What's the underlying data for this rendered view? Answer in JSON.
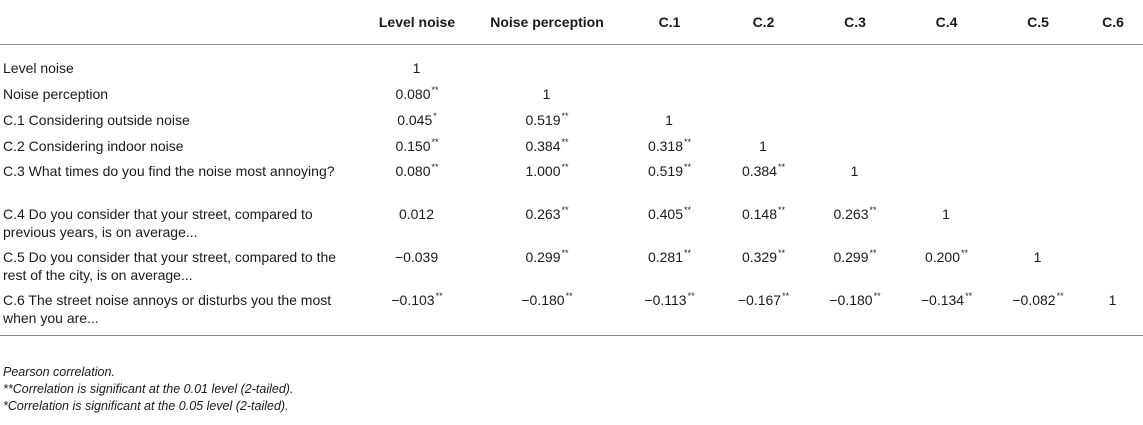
{
  "headers": [
    "",
    "Level noise",
    "Noise perception",
    "C.1",
    "C.2",
    "C.3",
    "C.4",
    "C.5",
    "C.6"
  ],
  "rows": [
    {
      "label": "Level noise",
      "cells": [
        [
          "1",
          ""
        ],
        [
          "",
          ""
        ],
        [
          "",
          ""
        ],
        [
          "",
          ""
        ],
        [
          "",
          ""
        ],
        [
          "",
          ""
        ],
        [
          "",
          ""
        ],
        [
          "",
          ""
        ]
      ]
    },
    {
      "label": "Noise perception",
      "cells": [
        [
          "0.080",
          "**"
        ],
        [
          "1",
          ""
        ],
        [
          "",
          ""
        ],
        [
          "",
          ""
        ],
        [
          "",
          ""
        ],
        [
          "",
          ""
        ],
        [
          "",
          ""
        ],
        [
          "",
          ""
        ]
      ]
    },
    {
      "label": "C.1 Considering outside noise",
      "cells": [
        [
          "0.045",
          "*"
        ],
        [
          "0.519",
          "**"
        ],
        [
          "1",
          ""
        ],
        [
          "",
          ""
        ],
        [
          "",
          ""
        ],
        [
          "",
          ""
        ],
        [
          "",
          ""
        ],
        [
          "",
          ""
        ]
      ]
    },
    {
      "label": "C.2 Considering indoor noise",
      "cells": [
        [
          "0.150",
          "**"
        ],
        [
          "0.384",
          "**"
        ],
        [
          "0.318",
          "**"
        ],
        [
          "1",
          ""
        ],
        [
          "",
          ""
        ],
        [
          "",
          ""
        ],
        [
          "",
          ""
        ],
        [
          "",
          ""
        ]
      ]
    },
    {
      "label": "C.3 What times do you find the noise most annoying?",
      "cells": [
        [
          "0.080",
          "**"
        ],
        [
          "1.000",
          "**"
        ],
        [
          "0.519",
          "**"
        ],
        [
          "0.384",
          "**"
        ],
        [
          "1",
          ""
        ],
        [
          "",
          ""
        ],
        [
          "",
          ""
        ],
        [
          "",
          ""
        ]
      ]
    },
    {
      "label": "C.4 Do you consider that your street, compared to previous years, is on average...",
      "cells": [
        [
          "0.012",
          ""
        ],
        [
          "0.263",
          "**"
        ],
        [
          "0.405",
          "**"
        ],
        [
          "0.148",
          "**"
        ],
        [
          "0.263",
          "**"
        ],
        [
          "1",
          ""
        ],
        [
          "",
          ""
        ],
        [
          "",
          ""
        ]
      ]
    },
    {
      "label": "C.5 Do you consider that your street, compared to the rest of the city, is on average...",
      "cells": [
        [
          "−0.039",
          ""
        ],
        [
          "0.299",
          "**"
        ],
        [
          "0.281",
          "**"
        ],
        [
          "0.329",
          "**"
        ],
        [
          "0.299",
          "**"
        ],
        [
          "0.200",
          "**"
        ],
        [
          "1",
          ""
        ],
        [
          "",
          ""
        ]
      ]
    },
    {
      "label": "C.6 The street noise annoys or disturbs you the most when you are...",
      "cells": [
        [
          "−0.103",
          "**"
        ],
        [
          "−0.180",
          "**"
        ],
        [
          "−0.113",
          "**"
        ],
        [
          "−0.167",
          "**"
        ],
        [
          "−0.180",
          "**"
        ],
        [
          "−0.134",
          "**"
        ],
        [
          "−0.082",
          "**"
        ],
        [
          "1",
          ""
        ]
      ]
    }
  ],
  "notes": {
    "line1": "Pearson correlation.",
    "line2": "**Correlation is significant at the 0.01 level (2-tailed).",
    "line3": "*Correlation is significant at the 0.05 level (2-tailed)."
  }
}
